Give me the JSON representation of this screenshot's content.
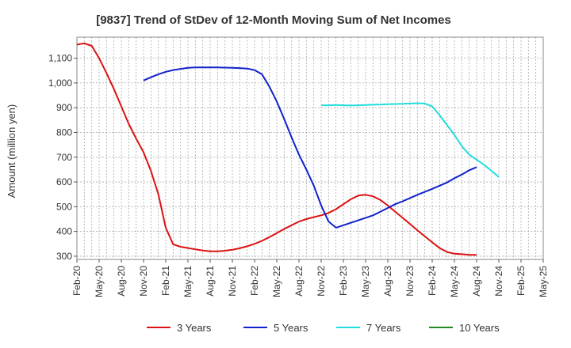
{
  "chart_data": {
    "type": "line",
    "title": "[9837]  Trend of StDev of 12-Month Moving Sum of Net Incomes",
    "xlabel": "",
    "ylabel": "Amount (million yen)",
    "ylim": [
      287,
      1185
    ],
    "yticks": [
      300,
      400,
      500,
      600,
      700,
      800,
      900,
      1000,
      1100
    ],
    "ytick_labels": [
      "300",
      "400",
      "500",
      "600",
      "700",
      "800",
      "900",
      "1,000",
      "1,100"
    ],
    "xticks": [
      "Feb-20",
      "May-20",
      "Aug-20",
      "Nov-20",
      "Feb-21",
      "May-21",
      "Aug-21",
      "Nov-21",
      "Feb-22",
      "May-22",
      "Aug-22",
      "Nov-22",
      "Feb-23",
      "May-23",
      "Aug-23",
      "Nov-23",
      "Feb-24",
      "May-24",
      "Aug-24",
      "Nov-24",
      "Feb-25",
      "May-25"
    ],
    "grid": true,
    "legend_position": "bottom",
    "series": [
      {
        "name": "3 Years",
        "color": "#dd1111",
        "points": [
          [
            0,
            1155
          ],
          [
            1,
            1160
          ],
          [
            2,
            1150
          ],
          [
            3,
            1100
          ],
          [
            4,
            1040
          ],
          [
            5,
            975
          ],
          [
            6,
            905
          ],
          [
            7,
            835
          ],
          [
            8,
            775
          ],
          [
            9,
            720
          ],
          [
            10,
            645
          ],
          [
            11,
            550
          ],
          [
            12,
            415
          ],
          [
            13,
            348
          ],
          [
            14,
            338
          ],
          [
            15,
            333
          ],
          [
            16,
            328
          ],
          [
            17,
            323
          ],
          [
            18,
            320
          ],
          [
            19,
            320
          ],
          [
            20,
            322
          ],
          [
            21,
            326
          ],
          [
            22,
            332
          ],
          [
            23,
            340
          ],
          [
            24,
            350
          ],
          [
            25,
            362
          ],
          [
            26,
            377
          ],
          [
            27,
            393
          ],
          [
            28,
            410
          ],
          [
            29,
            425
          ],
          [
            30,
            440
          ],
          [
            31,
            450
          ],
          [
            32,
            458
          ],
          [
            33,
            465
          ],
          [
            34,
            475
          ],
          [
            35,
            490
          ],
          [
            36,
            510
          ],
          [
            37,
            530
          ],
          [
            38,
            545
          ],
          [
            39,
            548
          ],
          [
            40,
            542
          ],
          [
            41,
            527
          ],
          [
            42,
            505
          ],
          [
            43,
            480
          ],
          [
            44,
            455
          ],
          [
            45,
            430
          ],
          [
            46,
            405
          ],
          [
            47,
            380
          ],
          [
            48,
            356
          ],
          [
            49,
            333
          ],
          [
            50,
            317
          ],
          [
            51,
            310
          ],
          [
            52,
            308
          ],
          [
            53,
            306
          ],
          [
            54,
            305
          ]
        ]
      },
      {
        "name": "5 Years",
        "color": "#1122cc",
        "points": [
          [
            9,
            1010
          ],
          [
            10,
            1023
          ],
          [
            11,
            1035
          ],
          [
            12,
            1045
          ],
          [
            13,
            1052
          ],
          [
            14,
            1057
          ],
          [
            15,
            1061
          ],
          [
            16,
            1063
          ],
          [
            17,
            1063
          ],
          [
            18,
            1063
          ],
          [
            19,
            1063
          ],
          [
            20,
            1062
          ],
          [
            21,
            1061
          ],
          [
            22,
            1060
          ],
          [
            23,
            1058
          ],
          [
            24,
            1052
          ],
          [
            25,
            1035
          ],
          [
            26,
            985
          ],
          [
            27,
            925
          ],
          [
            28,
            855
          ],
          [
            29,
            780
          ],
          [
            30,
            710
          ],
          [
            31,
            650
          ],
          [
            32,
            585
          ],
          [
            33,
            505
          ],
          [
            34,
            440
          ],
          [
            35,
            415
          ],
          [
            36,
            425
          ],
          [
            37,
            435
          ],
          [
            38,
            445
          ],
          [
            39,
            455
          ],
          [
            40,
            465
          ],
          [
            41,
            480
          ],
          [
            42,
            495
          ],
          [
            43,
            510
          ],
          [
            44,
            522
          ],
          [
            45,
            535
          ],
          [
            46,
            548
          ],
          [
            47,
            560
          ],
          [
            48,
            572
          ],
          [
            49,
            585
          ],
          [
            50,
            598
          ],
          [
            51,
            615
          ],
          [
            52,
            630
          ],
          [
            53,
            647
          ],
          [
            54,
            660
          ]
        ]
      },
      {
        "name": "7 Years",
        "color": "#22dddd",
        "points": [
          [
            33,
            910
          ],
          [
            34,
            910
          ],
          [
            35,
            911
          ],
          [
            36,
            910
          ],
          [
            37,
            909
          ],
          [
            38,
            910
          ],
          [
            39,
            911
          ],
          [
            40,
            912
          ],
          [
            41,
            913
          ],
          [
            42,
            914
          ],
          [
            43,
            915
          ],
          [
            44,
            916
          ],
          [
            45,
            917
          ],
          [
            46,
            918
          ],
          [
            47,
            917
          ],
          [
            48,
            905
          ],
          [
            49,
            870
          ],
          [
            50,
            830
          ],
          [
            51,
            790
          ],
          [
            52,
            745
          ],
          [
            53,
            710
          ],
          [
            54,
            690
          ],
          [
            55,
            670
          ],
          [
            56,
            645
          ],
          [
            57,
            620
          ]
        ]
      },
      {
        "name": "10 Years",
        "color": "#228822",
        "points": []
      }
    ]
  }
}
